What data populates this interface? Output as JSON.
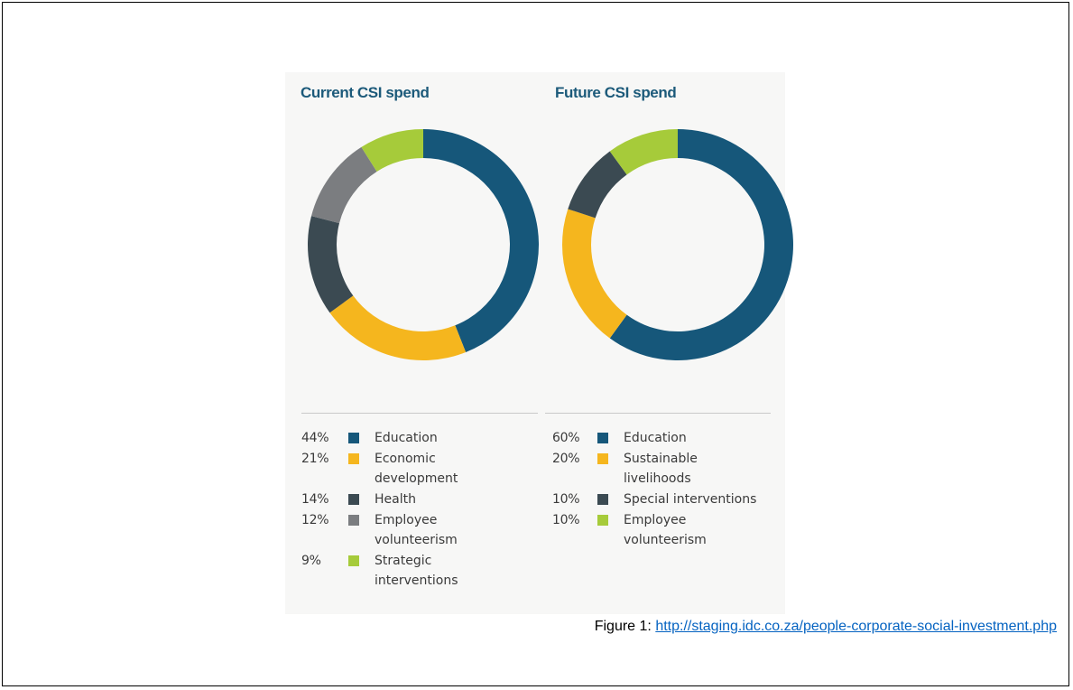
{
  "chart_data": [
    {
      "type": "pie",
      "title": "Current CSI spend",
      "categories": [
        "Education",
        "Economic development",
        "Health",
        "Employee volunteerism",
        "Strategic interventions"
      ],
      "values": [
        44,
        21,
        14,
        12,
        9
      ],
      "labels": [
        "44%",
        "21%",
        "14%",
        "12%",
        "9%"
      ],
      "colors": [
        "#16577a",
        "#f5b61e",
        "#3b4a52",
        "#7b7d80",
        "#a6cb3a"
      ],
      "legend": "bottom"
    },
    {
      "type": "pie",
      "title": "Future CSI spend",
      "categories": [
        "Education",
        "Sustainable livelihoods",
        "Special interventions",
        "Employee volunteerism"
      ],
      "values": [
        60,
        20,
        10,
        10
      ],
      "labels": [
        "60%",
        "20%",
        "10%",
        "10%"
      ],
      "colors": [
        "#16577a",
        "#f5b61e",
        "#3b4a52",
        "#a6cb3a"
      ],
      "legend": "bottom"
    }
  ],
  "caption": {
    "prefix": "Figure 1: ",
    "link": "http://staging.idc.co.za/people-corporate-social-investment.php"
  }
}
